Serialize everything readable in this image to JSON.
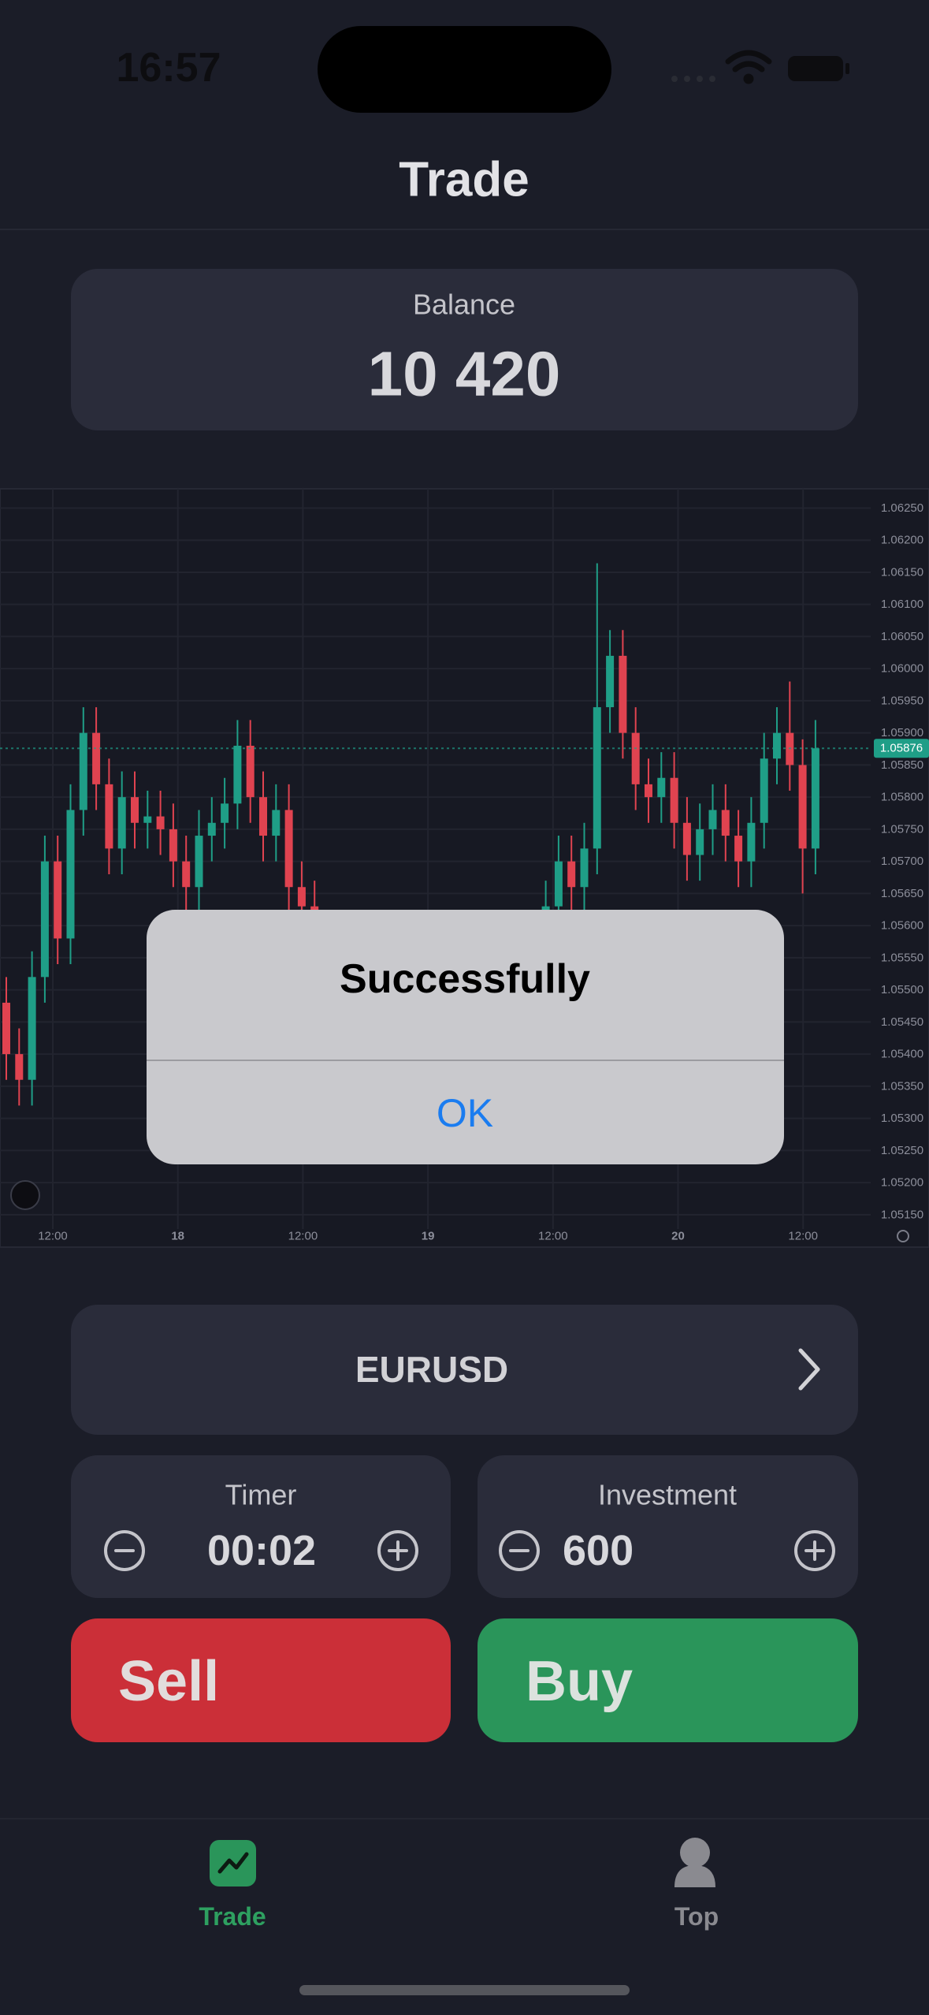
{
  "status_bar": {
    "time": "16:57"
  },
  "header": {
    "title": "Trade"
  },
  "balance": {
    "label": "Balance",
    "value": "10 420"
  },
  "chart_data": {
    "type": "candlestick",
    "open": [
      1.0548,
      1.054,
      1.0536,
      1.0552,
      1.057,
      1.0558,
      1.0578,
      1.059,
      1.0582,
      1.0572,
      1.058,
      1.0576,
      1.0577,
      1.0575,
      1.057,
      1.0566,
      1.0574,
      1.0576,
      1.0579,
      1.0588,
      1.058,
      1.0574,
      1.0578,
      1.0566,
      1.0563,
      1.0558,
      1.0552,
      1.0548,
      1.0545,
      1.055,
      1.0547,
      1.0542,
      1.0546,
      1.0549,
      1.0544,
      1.054,
      1.0543,
      1.0547,
      1.055,
      1.0548,
      1.0552,
      1.0555,
      1.0558,
      1.0563,
      1.057,
      1.0566,
      1.0572,
      1.0594,
      1.0602,
      1.059,
      1.0582,
      1.058,
      1.0583,
      1.0576,
      1.0571,
      1.0575,
      1.0578,
      1.0574,
      1.057,
      1.0576,
      1.0586,
      1.059,
      1.0585,
      1.0572
    ],
    "high": [
      1.0552,
      1.0544,
      1.0556,
      1.0574,
      1.0574,
      1.0582,
      1.0594,
      1.0594,
      1.0586,
      1.0584,
      1.0584,
      1.0581,
      1.0581,
      1.0579,
      1.0574,
      1.0578,
      1.058,
      1.0583,
      1.0592,
      1.0592,
      1.0584,
      1.0582,
      1.0582,
      1.057,
      1.0567,
      1.0562,
      1.0556,
      1.0552,
      1.0554,
      1.0554,
      1.0551,
      1.055,
      1.0553,
      1.0553,
      1.0548,
      1.0547,
      1.0551,
      1.0554,
      1.0554,
      1.0556,
      1.0559,
      1.0562,
      1.0567,
      1.0574,
      1.0574,
      1.0576,
      1.06164,
      1.0606,
      1.0606,
      1.0594,
      1.0586,
      1.0587,
      1.0587,
      1.058,
      1.0579,
      1.0582,
      1.0582,
      1.0578,
      1.058,
      1.059,
      1.0594,
      1.0598,
      1.0589,
      1.0592
    ],
    "low": [
      1.0536,
      1.0532,
      1.0532,
      1.0548,
      1.0554,
      1.0554,
      1.0574,
      1.0578,
      1.0568,
      1.0568,
      1.0572,
      1.0572,
      1.0571,
      1.0566,
      1.0562,
      1.0562,
      1.057,
      1.0572,
      1.0575,
      1.0576,
      1.057,
      1.057,
      1.0562,
      1.0559,
      1.0554,
      1.0548,
      1.0544,
      1.0541,
      1.0541,
      1.0543,
      1.0538,
      1.0538,
      1.0542,
      1.054,
      1.0536,
      1.0536,
      1.0539,
      1.0543,
      1.0544,
      1.0544,
      1.0548,
      1.0551,
      1.0554,
      1.0559,
      1.0562,
      1.0562,
      1.0568,
      1.059,
      1.0586,
      1.0578,
      1.0576,
      1.0576,
      1.0572,
      1.0567,
      1.0567,
      1.0571,
      1.057,
      1.0566,
      1.0566,
      1.0572,
      1.0582,
      1.0581,
      1.0565,
      1.0568
    ],
    "close": [
      1.054,
      1.0536,
      1.0552,
      1.057,
      1.0558,
      1.0578,
      1.059,
      1.0582,
      1.0572,
      1.058,
      1.0576,
      1.0577,
      1.0575,
      1.057,
      1.0566,
      1.0574,
      1.0576,
      1.0579,
      1.0588,
      1.058,
      1.0574,
      1.0578,
      1.0566,
      1.0563,
      1.0558,
      1.0552,
      1.0548,
      1.0545,
      1.055,
      1.0547,
      1.0542,
      1.0546,
      1.0549,
      1.0544,
      1.054,
      1.0543,
      1.0547,
      1.055,
      1.0548,
      1.0552,
      1.0555,
      1.0558,
      1.0563,
      1.057,
      1.0566,
      1.0572,
      1.0594,
      1.0602,
      1.059,
      1.0582,
      1.058,
      1.0583,
      1.0576,
      1.0571,
      1.0575,
      1.0578,
      1.0574,
      1.057,
      1.0576,
      1.0586,
      1.059,
      1.0585,
      1.0572,
      1.05876
    ],
    "up_color": "#1f9e87",
    "down_color": "#e04350",
    "ylim": [
      1.0514,
      1.0628
    ],
    "yticks": [
      {
        "value": 1.0625,
        "label": "1.06250"
      },
      {
        "value": 1.062,
        "label": "1.06200"
      },
      {
        "value": 1.0615,
        "label": "1.06150"
      },
      {
        "value": 1.061,
        "label": "1.06100"
      },
      {
        "value": 1.0605,
        "label": "1.06050"
      },
      {
        "value": 1.06,
        "label": "1.06000"
      },
      {
        "value": 1.0595,
        "label": "1.05950"
      },
      {
        "value": 1.059,
        "label": "1.05900"
      },
      {
        "value": 1.0585,
        "label": "1.05850"
      },
      {
        "value": 1.058,
        "label": "1.05800"
      },
      {
        "value": 1.0575,
        "label": "1.05750"
      },
      {
        "value": 1.057,
        "label": "1.05700"
      },
      {
        "value": 1.0565,
        "label": "1.05650"
      },
      {
        "value": 1.056,
        "label": "1.05600"
      },
      {
        "value": 1.0555,
        "label": "1.05550"
      },
      {
        "value": 1.055,
        "label": "1.05500"
      },
      {
        "value": 1.0545,
        "label": "1.05450"
      },
      {
        "value": 1.054,
        "label": "1.05400"
      },
      {
        "value": 1.0535,
        "label": "1.05350"
      },
      {
        "value": 1.053,
        "label": "1.05300"
      },
      {
        "value": 1.0525,
        "label": "1.05250"
      },
      {
        "value": 1.052,
        "label": "1.05200"
      },
      {
        "value": 1.0515,
        "label": "1.05150"
      }
    ],
    "xticks": [
      "12:00",
      "18",
      "12:00",
      "19",
      "12:00",
      "20",
      "12:00"
    ],
    "last_price": {
      "value": 1.05876,
      "label": "1.05876"
    },
    "grid": true
  },
  "dialog": {
    "title": "Successfully",
    "button": "OK"
  },
  "pair": {
    "label": "EURUSD"
  },
  "timer": {
    "label": "Timer",
    "value": "00:02"
  },
  "investment": {
    "label": "Investment",
    "value": "600"
  },
  "actions": {
    "sell": "Sell",
    "buy": "Buy"
  },
  "tab_bar": {
    "tabs": [
      {
        "label": "Trade"
      },
      {
        "label": "Top"
      }
    ]
  }
}
